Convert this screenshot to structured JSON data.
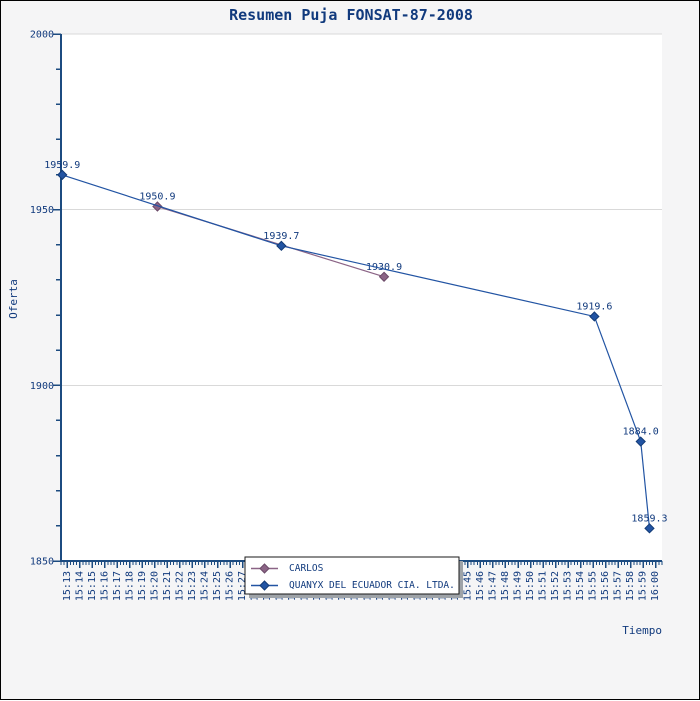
{
  "page": {
    "background": "#f5f5f6",
    "border_color": "#000000"
  },
  "chart_data": {
    "type": "line",
    "title": "Resumen Puja FONSAT-87-2008",
    "xlabel": "Tiempo",
    "ylabel": "Oferta",
    "x_axis": {
      "tick_labels": [
        "15:13",
        "15:14",
        "15:15",
        "15:16",
        "15:17",
        "15:18",
        "15:19",
        "15:20",
        "15:21",
        "15:22",
        "15:23",
        "15:24",
        "15:25",
        "15:26",
        "15:27",
        "15:28",
        "15:29",
        "15:30",
        "15:31",
        "15:32",
        "15:33",
        "15:34",
        "15:35",
        "15:36",
        "15:37",
        "15:38",
        "15:39",
        "15:40",
        "15:41",
        "15:42",
        "15:43",
        "15:44",
        "15:45",
        "15:46",
        "15:47",
        "15:48",
        "15:49",
        "15:50",
        "15:51",
        "15:52",
        "15:53",
        "15:54",
        "15:55",
        "15:56",
        "15:57",
        "15:58",
        "15:59",
        "16:00"
      ],
      "minor_ticks_per_label": 4
    },
    "y_axis": {
      "min": 1850,
      "max": 2000,
      "major_step": 50,
      "minor_step": 10,
      "tick_labels": [
        "1850",
        "1900",
        "1950",
        "2000"
      ]
    },
    "grid_values": [
      1900,
      1950,
      2000
    ],
    "series": [
      {
        "name": "CARLOS",
        "color": "#8b6486",
        "marker_stroke": "#6b4a68",
        "points": [
          {
            "t_min": 20.2,
            "value": 1950.9,
            "label": "1950.9"
          },
          {
            "t_min": 38.3,
            "value": 1930.9,
            "label": "1930.9"
          }
        ]
      },
      {
        "name": "QUANYX DEL ECUADOR CIA. LTDA.",
        "color": "#2254a3",
        "marker_stroke": "#123a75",
        "points": [
          {
            "t_min": 12.6,
            "value": 1959.9,
            "label": "1959.9"
          },
          {
            "t_min": 30.1,
            "value": 1939.7,
            "label": "1939.7"
          },
          {
            "t_min": 55.1,
            "value": 1919.6,
            "label": "1919.6"
          },
          {
            "t_min": 58.8,
            "value": 1884.0,
            "label": "1884.0"
          },
          {
            "t_min": 59.5,
            "value": 1859.3,
            "label": "1859.3"
          }
        ]
      }
    ],
    "legend": {
      "position": "bottom-center",
      "entries": [
        "CARLOS",
        "QUANYX DEL ECUADOR CIA. LTDA."
      ]
    },
    "colors": {
      "text": "#113a7d",
      "axis": "#1c4b80",
      "grid": "#d9d9d9",
      "plot_background": "#ffffff",
      "page_background": "#f5f5f6",
      "legend_border": "#1a1a1a",
      "legend_shadow": "#9ea3a8"
    }
  }
}
